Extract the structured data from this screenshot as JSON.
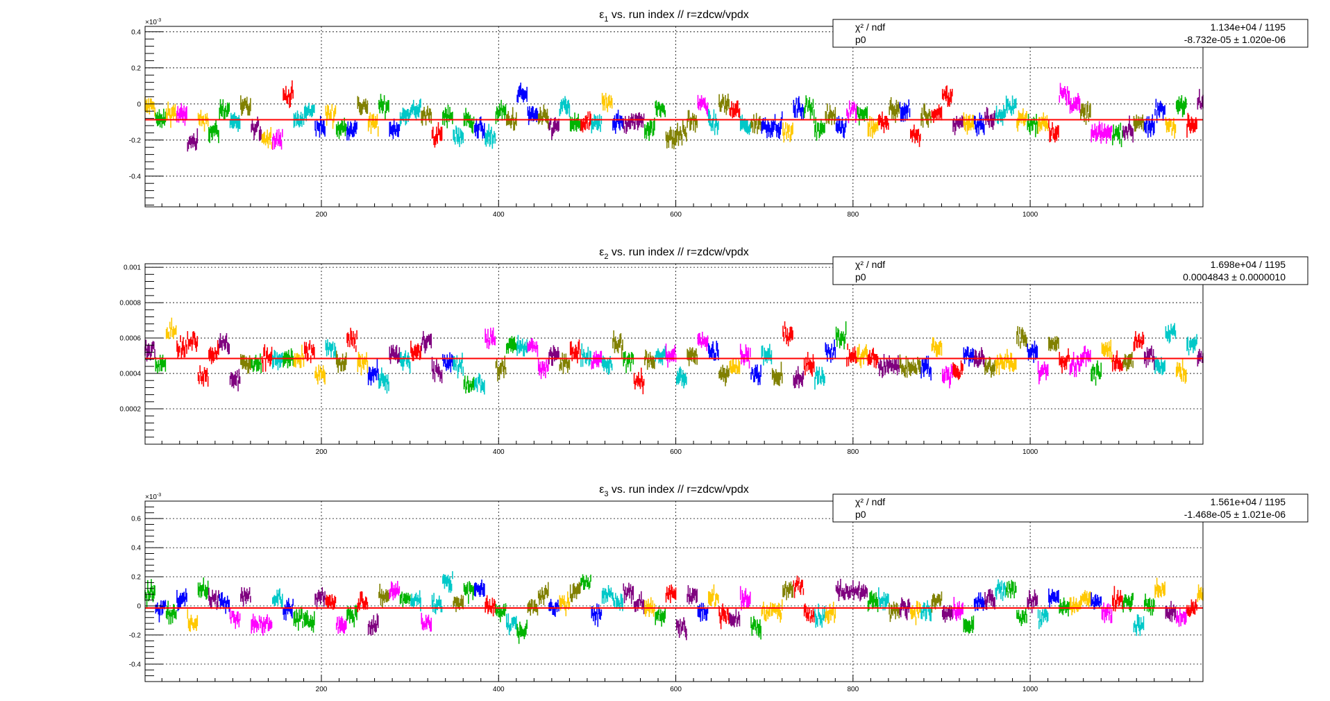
{
  "canvas_title": "",
  "palette": [
    "#0000ff",
    "#ff0000",
    "#00b400",
    "#ff00ff",
    "#00c8c8",
    "#ffc800",
    "#7f007f",
    "#808000"
  ],
  "fit_color": "#ff0000",
  "chart_data": [
    {
      "type": "scatter",
      "title": "ε1 vs. run index // r=zdcw/vpdx",
      "title_parts": {
        "symbol": "ε",
        "sub": "1",
        "rest": " vs. run index // r=zdcw/vpdx"
      },
      "xlabel": "",
      "ylabel": "",
      "xlim": [
        1,
        1195
      ],
      "ylim": [
        -0.00057,
        0.00043
      ],
      "y_exponent_label": "×10",
      "y_exponent_power": "-3",
      "x_ticks": [
        {
          "v": 200,
          "label": "200"
        },
        {
          "v": 400,
          "label": "400"
        },
        {
          "v": 600,
          "label": "600"
        },
        {
          "v": 800,
          "label": "800"
        },
        {
          "v": 1000,
          "label": "1000"
        }
      ],
      "y_ticks": [
        {
          "v": 0.0004,
          "label": "0.4"
        },
        {
          "v": 0.0002,
          "label": "0.2"
        },
        {
          "v": 0,
          "label": "0"
        },
        {
          "v": -0.0002,
          "label": "-0.2"
        },
        {
          "v": -0.0004,
          "label": "-0.4"
        }
      ],
      "grid": true,
      "fit_p0": -8.732e-05,
      "stats": {
        "chi2_label": "χ² / ndf",
        "chi2_value": "1.134e+04 / 1195",
        "p0_label": "p0",
        "p0_value": "-8.732e-05 ± 1.020e-06"
      },
      "series_approx": {
        "count": 1195,
        "segment_length": 12,
        "base": -8e-05,
        "amplitude": 0.00014,
        "error": 3e-05
      }
    },
    {
      "type": "scatter",
      "title": "ε2 vs. run index // r=zdcw/vpdx",
      "title_parts": {
        "symbol": "ε",
        "sub": "2",
        "rest": " vs. run index // r=zdcw/vpdx"
      },
      "xlabel": "",
      "ylabel": "",
      "xlim": [
        1,
        1195
      ],
      "ylim": [
        0.0,
        0.00102
      ],
      "y_exponent_label": "",
      "y_exponent_power": "",
      "x_ticks": [
        {
          "v": 200,
          "label": "200"
        },
        {
          "v": 400,
          "label": "400"
        },
        {
          "v": 600,
          "label": "600"
        },
        {
          "v": 800,
          "label": "800"
        },
        {
          "v": 1000,
          "label": "1000"
        }
      ],
      "y_ticks": [
        {
          "v": 0.001,
          "label": "0.001"
        },
        {
          "v": 0.0008,
          "label": "0.0008"
        },
        {
          "v": 0.0006,
          "label": "0.0006"
        },
        {
          "v": 0.0004,
          "label": "0.0004"
        },
        {
          "v": 0.0002,
          "label": "0.0002"
        }
      ],
      "grid": true,
      "fit_p0": 0.0004843,
      "stats": {
        "chi2_label": "χ² / ndf",
        "chi2_value": "1.698e+04 / 1195",
        "p0_label": "p0",
        "p0_value": "0.0004843 ± 0.0000010"
      },
      "series_approx": {
        "count": 1195,
        "segment_length": 12,
        "base": 0.00048,
        "amplitude": 0.00015,
        "error": 3e-05
      }
    },
    {
      "type": "scatter",
      "title": "ε3 vs. run index // r=zdcw/vpdx",
      "title_parts": {
        "symbol": "ε",
        "sub": "3",
        "rest": " vs. run index // r=zdcw/vpdx"
      },
      "xlabel": "",
      "ylabel": "",
      "xlim": [
        1,
        1195
      ],
      "ylim": [
        -0.00052,
        0.00072
      ],
      "y_exponent_label": "×10",
      "y_exponent_power": "-3",
      "x_ticks": [
        {
          "v": 200,
          "label": "200"
        },
        {
          "v": 400,
          "label": "400"
        },
        {
          "v": 600,
          "label": "600"
        },
        {
          "v": 800,
          "label": "800"
        },
        {
          "v": 1000,
          "label": "1000"
        }
      ],
      "y_ticks": [
        {
          "v": 0.0006,
          "label": "0.6"
        },
        {
          "v": 0.0004,
          "label": "0.4"
        },
        {
          "v": 0.0002,
          "label": "0.2"
        },
        {
          "v": 0,
          "label": "0"
        },
        {
          "v": -0.0002,
          "label": "-0.2"
        },
        {
          "v": -0.0004,
          "label": "-0.4"
        }
      ],
      "grid": true,
      "fit_p0": -1.468e-05,
      "stats": {
        "chi2_label": "χ² / ndf",
        "chi2_value": "1.561e+04 / 1195",
        "p0_label": "p0",
        "p0_value": "-1.468e-05 ± 1.021e-06"
      },
      "series_approx": {
        "count": 1195,
        "segment_length": 12,
        "base": 0.0,
        "amplitude": 0.00017,
        "error": 3.5e-05
      }
    }
  ]
}
